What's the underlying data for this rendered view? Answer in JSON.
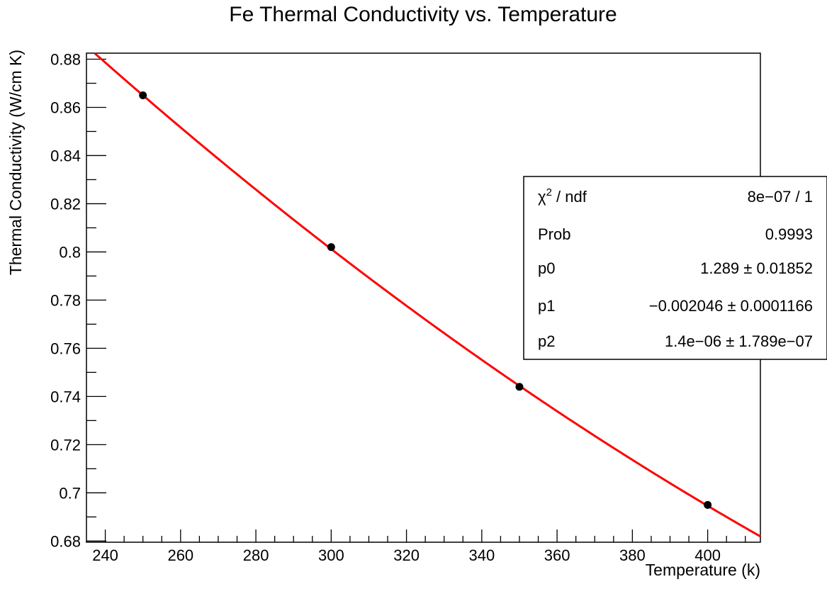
{
  "chart_data": {
    "type": "scatter",
    "title": "Fe Thermal Conductivity vs. Temperature",
    "xlabel": "Temperature (k)",
    "ylabel": "Thermal Conductivity (W/cm K)",
    "xlim": [
      235,
      414
    ],
    "ylim": [
      0.6795,
      0.8825
    ],
    "grid": false,
    "x_ticks": [
      240,
      260,
      280,
      300,
      320,
      340,
      360,
      380,
      400
    ],
    "y_ticks": [
      0.68,
      0.7,
      0.72,
      0.74,
      0.76,
      0.78,
      0.8,
      0.82,
      0.84,
      0.86,
      0.88
    ],
    "x_tick_labels": [
      "240",
      "260",
      "280",
      "300",
      "320",
      "340",
      "360",
      "380",
      "400"
    ],
    "y_tick_labels": [
      "0.68",
      "0.7",
      "0.72",
      "0.74",
      "0.76",
      "0.78",
      "0.8",
      "0.82",
      "0.84",
      "0.86",
      "0.88"
    ],
    "points": {
      "x": [
        250,
        300,
        350,
        400
      ],
      "y": [
        0.865,
        0.802,
        0.744,
        0.695
      ],
      "color": "#000000"
    },
    "fit": {
      "function": "pol2",
      "p0": 1.289,
      "p1": -0.002046,
      "p2": 1.4e-06,
      "x_range": [
        235,
        414
      ],
      "color": "#ff0000"
    },
    "stats_box": {
      "position": "right",
      "rows": [
        {
          "label": "χ2 / ndf",
          "value": "8e−07 / 1"
        },
        {
          "label": "Prob",
          "value": "0.9993"
        },
        {
          "label": "p0",
          "value": "1.289 ± 0.01852"
        },
        {
          "label": "p1",
          "value": "−0.002046 ± 0.0001166"
        },
        {
          "label": "p2",
          "value": "1.4e−06 ± 1.789e−07"
        }
      ]
    }
  }
}
